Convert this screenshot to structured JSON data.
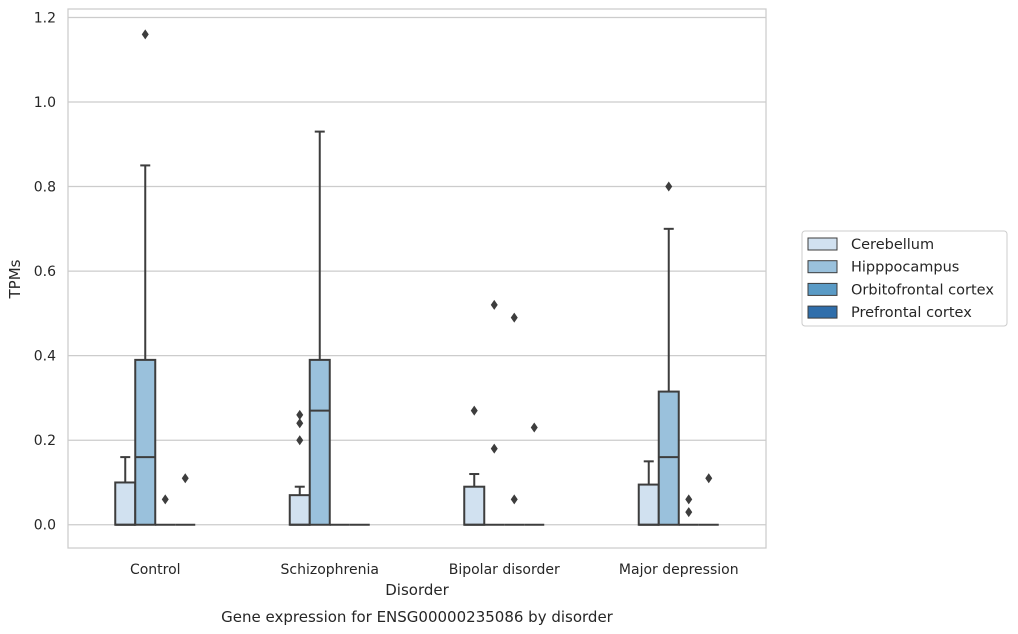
{
  "chart_data": {
    "type": "boxplot",
    "title": "Gene expression for ENSG00000235086 by disorder",
    "xlabel": "Disorder",
    "ylabel": "TPMs",
    "ylim": [
      -0.055,
      1.22
    ],
    "yticks": [
      "0.0",
      "0.2",
      "0.4",
      "0.6",
      "0.8",
      "1.0",
      "1.2"
    ],
    "grid": true,
    "legend_position": "right",
    "categories": [
      "Control",
      "Schizophrenia",
      "Bipolar disorder",
      "Major depression"
    ],
    "series": [
      {
        "name": "Cerebellum",
        "color": "#d1e1f0",
        "boxes": [
          {
            "min": 0,
            "q1": 0,
            "median": 0,
            "q3": 0.1,
            "max": 0.16,
            "outliers": []
          },
          {
            "min": 0,
            "q1": 0,
            "median": 0,
            "q3": 0.07,
            "max": 0.09,
            "outliers": [
              0.2,
              0.24,
              0.26
            ]
          },
          {
            "min": 0,
            "q1": 0,
            "median": 0,
            "q3": 0.09,
            "max": 0.12,
            "outliers": [
              0.27
            ]
          },
          {
            "min": 0,
            "q1": 0,
            "median": 0,
            "q3": 0.095,
            "max": 0.15,
            "outliers": []
          }
        ]
      },
      {
        "name": "Hipppocampus",
        "color": "#9ac1dc",
        "boxes": [
          {
            "min": 0,
            "q1": 0,
            "median": 0.16,
            "q3": 0.39,
            "max": 0.85,
            "outliers": [
              1.16
            ]
          },
          {
            "min": 0,
            "q1": 0,
            "median": 0.27,
            "q3": 0.39,
            "max": 0.93,
            "outliers": []
          },
          {
            "min": 0,
            "q1": 0,
            "median": 0,
            "q3": 0,
            "max": 0,
            "outliers": [
              0.18,
              0.52
            ]
          },
          {
            "min": 0,
            "q1": 0,
            "median": 0.16,
            "q3": 0.315,
            "max": 0.7,
            "outliers": [
              0.8
            ]
          }
        ]
      },
      {
        "name": "Orbitofrontal cortex",
        "color": "#5a9bc6",
        "boxes": [
          {
            "min": 0,
            "q1": 0,
            "median": 0,
            "q3": 0,
            "max": 0,
            "outliers": [
              0.06
            ]
          },
          {
            "min": 0,
            "q1": 0,
            "median": 0,
            "q3": 0,
            "max": 0,
            "outliers": []
          },
          {
            "min": 0,
            "q1": 0,
            "median": 0,
            "q3": 0,
            "max": 0,
            "outliers": [
              0.06,
              0.49
            ]
          },
          {
            "min": 0,
            "q1": 0,
            "median": 0,
            "q3": 0,
            "max": 0,
            "outliers": [
              0.03,
              0.06
            ]
          }
        ]
      },
      {
        "name": "Prefrontal cortex",
        "color": "#2f6eab",
        "boxes": [
          {
            "min": 0,
            "q1": 0,
            "median": 0,
            "q3": 0,
            "max": 0,
            "outliers": [
              0.11
            ]
          },
          {
            "min": 0,
            "q1": 0,
            "median": 0,
            "q3": 0,
            "max": 0,
            "outliers": []
          },
          {
            "min": 0,
            "q1": 0,
            "median": 0,
            "q3": 0,
            "max": 0,
            "outliers": [
              0.23
            ]
          },
          {
            "min": 0,
            "q1": 0,
            "median": 0,
            "q3": 0,
            "max": 0,
            "outliers": [
              0.11
            ]
          }
        ]
      }
    ]
  }
}
